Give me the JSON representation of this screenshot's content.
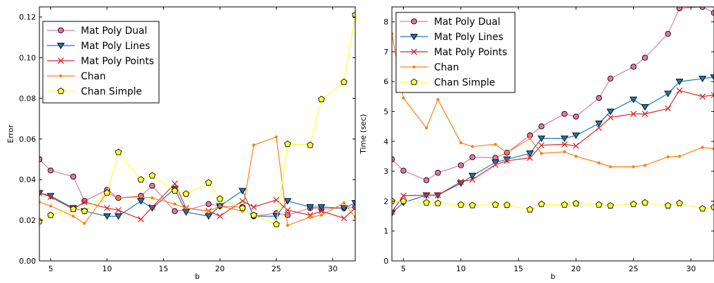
{
  "chart_data": [
    {
      "type": "line",
      "title": "",
      "xlabel": "b",
      "ylabel": "Error",
      "xlim": [
        4,
        32
      ],
      "ylim": [
        0,
        0.125
      ],
      "xticks": [
        5,
        10,
        15,
        20,
        25,
        30
      ],
      "yticks": [
        0.0,
        0.02,
        0.04,
        0.06,
        0.08,
        0.1,
        0.12
      ],
      "ytick_labels": [
        "0.00",
        "0.02",
        "0.04",
        "0.06",
        "0.08",
        "0.10",
        "0.12"
      ],
      "legend_position": "top-left",
      "grid": false,
      "series": [
        {
          "name": "Mat Poly Dual",
          "color": "#e377a4",
          "marker": "circle",
          "x": [
            4,
            5,
            7,
            8,
            10,
            11,
            13,
            14,
            16,
            17,
            19,
            20,
            22,
            23,
            25,
            26,
            28,
            29,
            31,
            32
          ],
          "y": [
            0.05,
            0.0445,
            0.0415,
            0.0295,
            0.035,
            0.031,
            0.032,
            0.037,
            0.0245,
            0.025,
            0.028,
            0.027,
            0.0265,
            0.022,
            0.0235,
            0.0225,
            0.026,
            0.0255,
            0.026,
            0.0265
          ]
        },
        {
          "name": "Mat Poly Lines",
          "color": "#1f77b4",
          "marker": "triangle-down",
          "x": [
            4,
            5,
            7,
            8,
            10,
            11,
            13,
            14,
            16,
            17,
            19,
            20,
            22,
            23,
            25,
            26,
            28,
            29,
            31,
            32
          ],
          "y": [
            0.0335,
            0.032,
            0.026,
            0.0245,
            0.022,
            0.022,
            0.0295,
            0.026,
            0.0355,
            0.024,
            0.022,
            0.027,
            0.0345,
            0.022,
            0.022,
            0.0295,
            0.0265,
            0.0265,
            0.026,
            0.0285
          ]
        },
        {
          "name": "Mat Poly Points",
          "color": "#d62728",
          "marker": "x",
          "x": [
            4,
            5,
            7,
            8,
            10,
            11,
            13,
            14,
            16,
            17,
            19,
            20,
            22,
            23,
            25,
            26,
            28,
            29,
            31,
            32
          ],
          "y": [
            0.0335,
            0.0315,
            0.0255,
            0.029,
            0.026,
            0.025,
            0.0205,
            0.0265,
            0.038,
            0.026,
            0.0245,
            0.022,
            0.0295,
            0.0265,
            0.03,
            0.025,
            0.0225,
            0.0245,
            0.021,
            0.026
          ]
        },
        {
          "name": "Chan",
          "color": "#ff7f0e",
          "marker": "dot",
          "x": [
            4,
            5,
            7,
            8,
            10,
            11,
            13,
            14,
            16,
            17,
            19,
            20,
            22,
            23,
            25,
            26,
            28,
            29,
            31,
            32
          ],
          "y": [
            0.029,
            0.027,
            0.022,
            0.0185,
            0.0335,
            0.031,
            0.0315,
            0.031,
            0.028,
            0.026,
            0.0245,
            0.027,
            0.0245,
            0.057,
            0.061,
            0.0175,
            0.0215,
            0.0225,
            0.0285,
            0.0215
          ]
        },
        {
          "name": "Chan Simple",
          "color": "#ffff33",
          "marker": "pentagon",
          "x": [
            4,
            5,
            7,
            8,
            10,
            11,
            13,
            14,
            16,
            17,
            19,
            20,
            22,
            23,
            25,
            26,
            28,
            29,
            31,
            32
          ],
          "y": [
            0.0195,
            0.0225,
            0.0255,
            0.0245,
            0.0335,
            0.0535,
            0.04,
            0.042,
            0.0345,
            0.033,
            0.0385,
            0.0305,
            0.026,
            0.0225,
            0.018,
            0.0575,
            0.057,
            0.0795,
            0.088,
            0.121
          ]
        }
      ]
    },
    {
      "type": "line",
      "title": "",
      "xlabel": "b",
      "ylabel": "Time (sec)",
      "xlim": [
        4,
        32
      ],
      "ylim": [
        0,
        8.5
      ],
      "xticks": [
        5,
        10,
        15,
        20,
        25,
        30
      ],
      "yticks": [
        0,
        1,
        2,
        3,
        4,
        5,
        6,
        7,
        8
      ],
      "ytick_labels": [
        "0",
        "1",
        "2",
        "3",
        "4",
        "5",
        "6",
        "7",
        "8"
      ],
      "legend_position": "top-left",
      "grid": false,
      "series": [
        {
          "name": "Mat Poly Dual",
          "color": "#e377a4",
          "marker": "circle",
          "x": [
            4,
            5,
            7,
            8,
            10,
            11,
            13,
            14,
            16,
            17,
            19,
            20,
            22,
            23,
            25,
            26,
            28,
            29,
            31,
            32
          ],
          "y": [
            3.4,
            3.02,
            2.7,
            2.95,
            3.2,
            3.47,
            3.45,
            3.62,
            4.2,
            4.5,
            4.92,
            4.83,
            5.45,
            6.1,
            6.5,
            6.8,
            7.6,
            8.45,
            8.5,
            8.3
          ]
        },
        {
          "name": "Mat Poly Lines",
          "color": "#1f77b4",
          "marker": "triangle-down",
          "x": [
            4,
            5,
            7,
            8,
            10,
            11,
            13,
            14,
            16,
            17,
            19,
            20,
            22,
            23,
            25,
            26,
            28,
            29,
            31,
            32
          ],
          "y": [
            1.6,
            1.95,
            2.2,
            2.2,
            2.6,
            2.85,
            3.3,
            3.4,
            3.6,
            4.1,
            4.1,
            4.2,
            4.6,
            5.0,
            5.4,
            5.15,
            5.6,
            6.0,
            6.1,
            6.15
          ]
        },
        {
          "name": "Mat Poly Points",
          "color": "#d62728",
          "marker": "x",
          "x": [
            4,
            5,
            7,
            8,
            10,
            11,
            13,
            14,
            16,
            17,
            19,
            20,
            22,
            23,
            25,
            26,
            28,
            29,
            31,
            32
          ],
          "y": [
            1.65,
            2.18,
            2.2,
            2.2,
            2.65,
            2.72,
            3.22,
            3.35,
            3.45,
            3.87,
            3.9,
            3.85,
            4.45,
            4.8,
            4.92,
            4.92,
            5.1,
            5.7,
            5.5,
            5.55
          ]
        },
        {
          "name": "Chan",
          "color": "#ff7f0e",
          "marker": "dot",
          "x": [
            4,
            5,
            7,
            8,
            10,
            11,
            13,
            14,
            16,
            17,
            19,
            20,
            22,
            23,
            25,
            26,
            28,
            29,
            31,
            32
          ],
          "y": [
            7.6,
            5.45,
            4.45,
            5.4,
            3.95,
            3.83,
            3.9,
            3.62,
            4.1,
            3.6,
            3.65,
            3.5,
            3.28,
            3.15,
            3.15,
            3.2,
            3.48,
            3.5,
            3.8,
            3.75
          ]
        },
        {
          "name": "Chan Simple",
          "color": "#ffff33",
          "marker": "pentagon",
          "x": [
            4,
            5,
            7,
            8,
            10,
            11,
            13,
            14,
            16,
            17,
            19,
            20,
            22,
            23,
            25,
            26,
            28,
            29,
            31,
            32
          ],
          "y": [
            2.0,
            2.0,
            1.95,
            1.93,
            1.88,
            1.86,
            1.88,
            1.87,
            1.72,
            1.9,
            1.88,
            1.92,
            1.88,
            1.85,
            1.9,
            1.95,
            1.85,
            1.93,
            1.75,
            1.8
          ]
        }
      ]
    }
  ]
}
